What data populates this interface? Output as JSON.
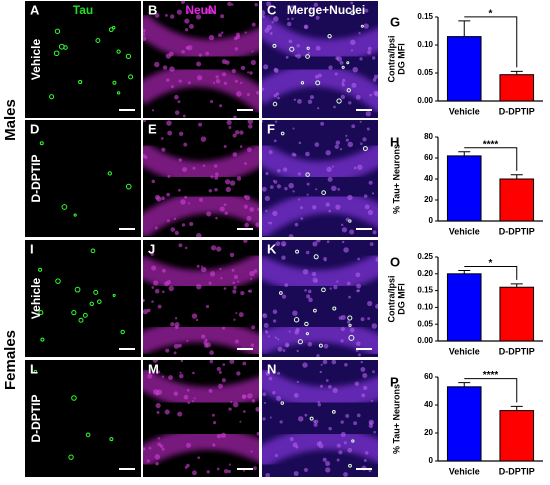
{
  "figure": {
    "columns": [
      "Tau",
      "NeuN",
      "Merge+Nuclei"
    ],
    "groups": [
      "Males",
      "Females"
    ],
    "rows": [
      "Vehicle",
      "D-DPTIP",
      "Vehicle",
      "D-DPTIP"
    ],
    "panels": [
      "A",
      "B",
      "C",
      "D",
      "E",
      "F",
      "I",
      "J",
      "K",
      "L",
      "M",
      "N"
    ]
  },
  "chart_data": [
    {
      "type": "bar",
      "panel": "G",
      "ylabel": [
        "Contra/Ipsi",
        "DG MFI"
      ],
      "categories": [
        "Vehicle",
        "D-DPTIP"
      ],
      "values": [
        0.115,
        0.047
      ],
      "errors": [
        0.028,
        0.006
      ],
      "colors": [
        "#0000ff",
        "#ff0000"
      ],
      "ylim": [
        0,
        0.15
      ],
      "yticks": [
        {
          "value": 0,
          "label": "0.00"
        },
        {
          "value": 0.05,
          "label": "0.05"
        },
        {
          "value": 0.1,
          "label": "0.10"
        },
        {
          "value": 0.15,
          "label": "0.15"
        }
      ],
      "significance": "*"
    },
    {
      "type": "bar",
      "panel": "H",
      "ylabel": [
        "% Tau+ Neurons"
      ],
      "categories": [
        "Vehicle",
        "D-DPTIP"
      ],
      "values": [
        62,
        40
      ],
      "errors": [
        4,
        4
      ],
      "colors": [
        "#0000ff",
        "#ff0000"
      ],
      "ylim": [
        0,
        80
      ],
      "yticks": [
        0,
        20,
        40,
        60,
        80
      ],
      "significance": "****"
    },
    {
      "type": "bar",
      "panel": "O",
      "ylabel": [
        "Contra/Ipsi",
        "DG MFI"
      ],
      "categories": [
        "Vehicle",
        "D-DPTIP"
      ],
      "values": [
        0.2,
        0.16
      ],
      "errors": [
        0.01,
        0.01
      ],
      "colors": [
        "#0000ff",
        "#ff0000"
      ],
      "ylim": [
        0,
        0.25
      ],
      "yticks": [
        {
          "value": 0,
          "label": "0.00"
        },
        {
          "value": 0.05,
          "label": "0.05"
        },
        {
          "value": 0.1,
          "label": "0.10"
        },
        {
          "value": 0.15,
          "label": "0.15"
        },
        {
          "value": 0.2,
          "label": "0.20"
        },
        {
          "value": 0.25,
          "label": "0.25"
        }
      ],
      "significance": "*"
    },
    {
      "type": "bar",
      "panel": "P",
      "ylabel": [
        "% Tau+ Neurons"
      ],
      "categories": [
        "Vehicle",
        "D-DPTIP"
      ],
      "values": [
        53,
        36
      ],
      "errors": [
        3,
        3
      ],
      "colors": [
        "#0000ff",
        "#ff0000"
      ],
      "ylim": [
        0,
        60
      ],
      "yticks": [
        0,
        20,
        40,
        60
      ],
      "significance": "****"
    }
  ]
}
